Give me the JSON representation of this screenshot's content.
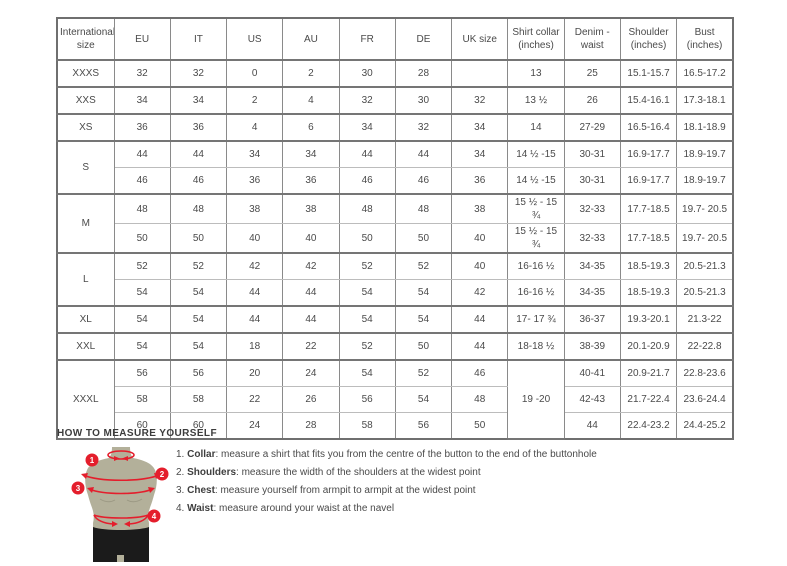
{
  "size_table": {
    "headers": [
      "International size",
      "EU",
      "IT",
      "US",
      "AU",
      "FR",
      "DE",
      "UK size",
      "Shirt collar (inches)",
      "Denim - waist",
      "Shoulder (inches)",
      "Bust (inches)"
    ],
    "rows": [
      [
        {
          "t": "XXXS",
          "rs": 1,
          "size": true
        },
        "32",
        "32",
        "0",
        "2",
        "30",
        "28",
        "",
        "13",
        "25",
        "15.1-15.7",
        "16.5-17.2"
      ],
      [
        {
          "t": "XXS",
          "rs": 1,
          "size": true
        },
        "34",
        "34",
        "2",
        "4",
        "32",
        "30",
        "32",
        "13 ½",
        "26",
        "15.4-16.1",
        "17.3-18.1"
      ],
      [
        {
          "t": "XS",
          "rs": 1,
          "size": true
        },
        "36",
        "36",
        "4",
        "6",
        "34",
        "32",
        "34",
        "14",
        "27-29",
        "16.5-16.4",
        "18.1-18.9"
      ],
      [
        {
          "t": "S",
          "rs": 2,
          "size": true
        },
        "44",
        "44",
        "34",
        "34",
        "44",
        "44",
        "34",
        "14 ½ -15",
        "30-31",
        "16.9-17.7",
        "18.9-19.7"
      ],
      [
        "46",
        "46",
        "36",
        "36",
        "46",
        "46",
        "36",
        "14 ½ -15",
        "30-31",
        "16.9-17.7",
        "18.9-19.7"
      ],
      [
        {
          "t": "M",
          "rs": 2,
          "size": true
        },
        "48",
        "48",
        "38",
        "38",
        "48",
        "48",
        "38",
        "15 ½ - 15 ¾",
        "32-33",
        "17.7-18.5",
        "19.7- 20.5"
      ],
      [
        "50",
        "50",
        "40",
        "40",
        "50",
        "50",
        "40",
        "15 ½ - 15 ¾",
        "32-33",
        "17.7-18.5",
        "19.7- 20.5"
      ],
      [
        {
          "t": "L",
          "rs": 2,
          "size": true
        },
        "52",
        "52",
        "42",
        "42",
        "52",
        "52",
        "40",
        "16-16 ½",
        "34-35",
        "18.5-19.3",
        "20.5-21.3"
      ],
      [
        "54",
        "54",
        "44",
        "44",
        "54",
        "54",
        "42",
        "16-16 ½",
        "34-35",
        "18.5-19.3",
        "20.5-21.3"
      ],
      [
        {
          "t": "XL",
          "rs": 1,
          "size": true
        },
        "54",
        "54",
        "44",
        "44",
        "54",
        "54",
        "44",
        "17- 17 ¾",
        "36-37",
        "19.3-20.1",
        "21.3-22"
      ],
      [
        {
          "t": "XXL",
          "rs": 1,
          "size": true
        },
        "54",
        "54",
        "18",
        "22",
        "52",
        "50",
        "44",
        "18-18 ½",
        "38-39",
        "20.1-20.9",
        "22-22.8"
      ],
      [
        {
          "t": "XXXL",
          "rs": 3,
          "size": true
        },
        "56",
        "56",
        "20",
        "24",
        "54",
        "52",
        "46",
        {
          "t": "19 -20",
          "rs": 3
        },
        "40-41",
        "20.9-21.7",
        "22.8-23.6"
      ],
      [
        "58",
        "58",
        "22",
        "26",
        "56",
        "54",
        "48",
        "42-43",
        "21.7-22.4",
        "23.6-24.4"
      ],
      [
        "60",
        "60",
        "24",
        "28",
        "58",
        "56",
        "50",
        "44",
        "22.4-23.2",
        "24.4-25.2"
      ]
    ],
    "group_end_rows": [
      0,
      1,
      2,
      4,
      6,
      8,
      9,
      10
    ]
  },
  "measure_guide": {
    "title": "HOW TO MEASURE YOURSELF",
    "steps": [
      {
        "num": "1",
        "label": "Collar",
        "text": "measure a shirt that fits you from the centre of the button to the end of the buttonhole"
      },
      {
        "num": "2",
        "label": "Shoulders",
        "text": "measure the width of the shoulders at the widest point"
      },
      {
        "num": "3",
        "label": "Chest",
        "text": "measure yourself from armpit to armpit at the widest point"
      },
      {
        "num": "4",
        "label": "Waist",
        "text": "measure around your waist at the navel"
      }
    ],
    "figure_markers": [
      "1",
      "2",
      "3",
      "4"
    ],
    "colors": {
      "accent_red": "#e41e2c",
      "mannequin": "#b3b09a",
      "shorts": "#1b1b1b",
      "border_dark": "#757575",
      "border_light": "#bcbcbc",
      "text": "#4a4a4a"
    }
  }
}
